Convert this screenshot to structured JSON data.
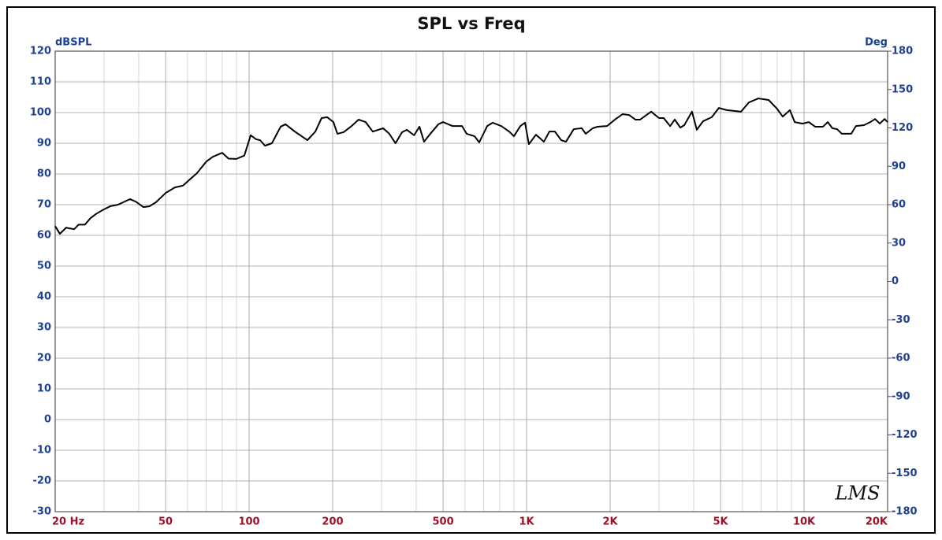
{
  "chart_data": {
    "type": "line",
    "title": "SPL vs Freq",
    "y_label": "dBSPL",
    "y2_label": "Deg",
    "annotation": "LMS",
    "log_x": true,
    "grid": true,
    "color": "#000000",
    "xlim": [
      20,
      20000
    ],
    "xticks": [
      {
        "value": 20,
        "label": "20 Hz"
      },
      50,
      100,
      200,
      500,
      {
        "value": 1000,
        "label": "1K"
      },
      {
        "value": 2000,
        "label": "2K"
      },
      {
        "value": 5000,
        "label": "5K"
      },
      {
        "value": 10000,
        "label": "10K"
      },
      {
        "value": 20000,
        "label": "20K"
      }
    ],
    "x_minor_grid": [
      30,
      40,
      60,
      70,
      80,
      90,
      300,
      400,
      600,
      700,
      800,
      900,
      3000,
      4000,
      6000,
      7000,
      8000,
      9000
    ],
    "ylim": [
      -30,
      120
    ],
    "yticks": [
      120,
      110,
      100,
      90,
      80,
      70,
      60,
      50,
      40,
      30,
      20,
      10,
      0,
      -10,
      -20,
      -30
    ],
    "y2lim": [
      -180,
      180
    ],
    "y2ticks": [
      180,
      150,
      120,
      90,
      60,
      30,
      0,
      -30,
      -60,
      -90,
      -120,
      -150,
      -180
    ],
    "x": [
      20,
      20.8,
      21.9,
      23.4,
      24.3,
      25.6,
      26.8,
      28.1,
      29.6,
      31.6,
      33.7,
      37.2,
      39.0,
      41.6,
      43.8,
      46.2,
      50.0,
      54.0,
      57.7,
      60.8,
      64.9,
      70.2,
      74.0,
      80.0,
      84.3,
      90.0,
      96.1,
      101.3,
      106,
      109.6,
      114,
      120.8,
      129.9,
      135.2,
      146.2,
      162.2,
      173.2,
      182.4,
      191,
      201.3,
      208,
      219,
      234,
      248,
      263,
      279,
      304,
      320,
      337,
      355.7,
      370,
      393,
      411,
      427,
      450,
      481,
      500,
      541,
      585,
      608,
      649,
      675,
      721,
      755,
      811,
      866,
      900,
      949,
      987,
      1019,
      1081,
      1154,
      1208,
      1265,
      1333,
      1386,
      1479,
      1581,
      1633,
      1732,
      1803,
      1950,
      2080,
      2220,
      2340,
      2467,
      2565,
      2812,
      3000,
      3120,
      3290,
      3420,
      3580,
      3700,
      3945,
      4106,
      4327,
      4648,
      4930,
      5263,
      5927,
      6325,
      6840,
      7450,
      7945,
      8375,
      8890,
      9250,
      9860,
      10400,
      10960,
      11700,
      12170,
      12650,
      13150,
      13680,
      14790,
      15380,
      16440,
      17320,
      18030,
      18750,
      19500,
      20000
    ],
    "values": [
      63,
      60.5,
      62.5,
      62,
      63.5,
      63.5,
      65.6,
      67,
      68.2,
      69.5,
      70,
      71.8,
      71,
      69.2,
      69.5,
      70.8,
      73.8,
      75.6,
      76.2,
      78,
      80.3,
      84.1,
      85.6,
      86.9,
      85,
      84.9,
      86,
      92.6,
      91.3,
      91,
      89.2,
      90,
      95.4,
      96.2,
      93.8,
      91,
      93.8,
      98.2,
      98.5,
      96.9,
      93.1,
      93.6,
      95.6,
      97.7,
      96.9,
      93.8,
      94.9,
      93.1,
      90,
      93.6,
      94.4,
      92.6,
      95.4,
      90.5,
      93.1,
      96.2,
      96.9,
      95.6,
      95.6,
      93.1,
      92.3,
      90.3,
      95.6,
      96.7,
      95.6,
      93.8,
      92.3,
      95.6,
      96.7,
      89.7,
      92.8,
      90.5,
      93.8,
      93.8,
      91,
      90.5,
      94.6,
      94.9,
      93.1,
      94.9,
      95.4,
      95.6,
      97.7,
      99.5,
      99.2,
      97.7,
      97.7,
      100.3,
      98.2,
      98.2,
      95.6,
      97.7,
      95.1,
      95.9,
      100.3,
      94.4,
      97.2,
      98.5,
      101.5,
      100.8,
      100.3,
      103.3,
      104.6,
      104.1,
      101.5,
      98.7,
      100.8,
      96.9,
      96.4,
      96.9,
      95.4,
      95.4,
      96.9,
      94.9,
      94.6,
      93.1,
      93.1,
      95.6,
      95.9,
      96.9,
      97.9,
      96.4,
      97.9,
      96.9
    ]
  }
}
